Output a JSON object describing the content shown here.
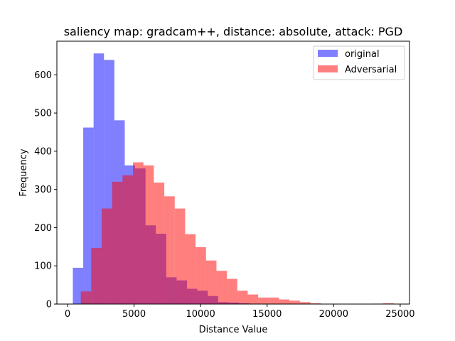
{
  "chart_data": {
    "type": "bar",
    "title": "saliency map: gradcam++, distance: absolute, attack: PGD",
    "xlabel": "Distance Value",
    "ylabel": "Frequency",
    "xlim": [
      -800,
      25700
    ],
    "ylim": [
      0,
      688
    ],
    "xticks": [
      0,
      5000,
      10000,
      15000,
      20000,
      25000
    ],
    "yticks": [
      0,
      100,
      200,
      300,
      400,
      500,
      600
    ],
    "legend_position": "top-right",
    "series": [
      {
        "name": "original",
        "color": "#0000ff",
        "opacity": 0.5,
        "bin_start": 400,
        "bin_width": 780,
        "values": [
          95,
          462,
          656,
          639,
          481,
          363,
          355,
          206,
          184,
          70,
          62,
          40,
          35,
          21,
          5,
          4,
          2,
          1,
          0,
          0,
          0,
          0,
          0,
          0,
          0,
          0,
          0,
          0,
          0,
          1
        ]
      },
      {
        "name": "Adversarial",
        "color": "#ff0000",
        "opacity": 0.5,
        "bin_start": 1000,
        "bin_width": 784,
        "values": [
          33,
          147,
          250,
          320,
          337,
          371,
          363,
          318,
          282,
          250,
          183,
          149,
          114,
          87,
          66,
          35,
          25,
          17,
          17,
          12,
          9,
          5,
          2,
          0,
          0,
          0,
          0,
          0,
          1,
          2
        ]
      }
    ]
  }
}
